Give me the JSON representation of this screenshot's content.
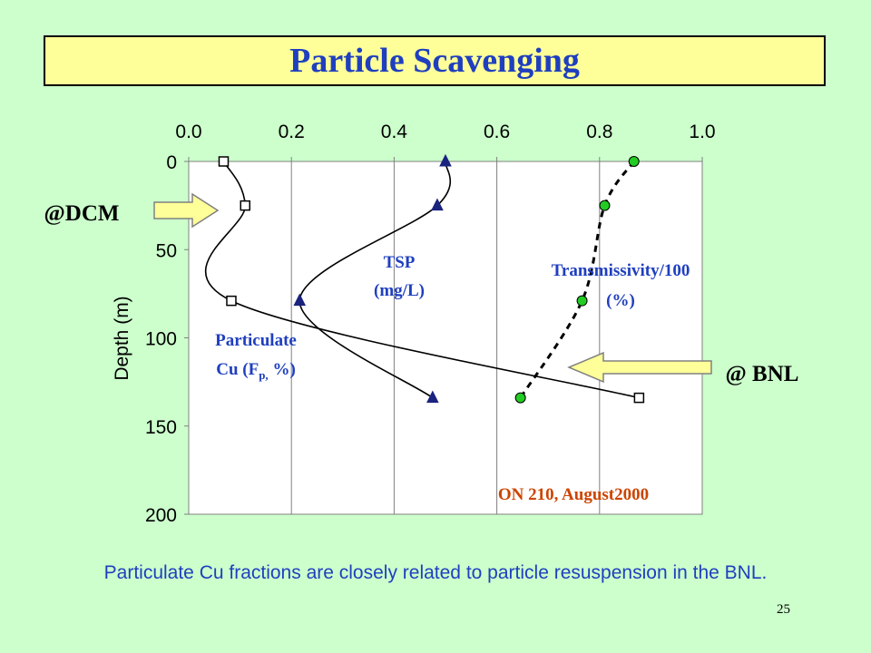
{
  "title": "Particle Scavenging",
  "caption": "Particulate Cu fractions are closely related to particle resuspension in the BNL.",
  "page_number": "25",
  "colors": {
    "background": "#ccffcc",
    "title_bg": "#ffff99",
    "title_text": "#1f3fbf",
    "label_blue": "#1f3fbf",
    "annotation_orange": "#cc4400",
    "tsp_marker": "#1a237e",
    "transmissivity_marker": "#22cc22",
    "arrow_fill": "#ffff99"
  },
  "labels": {
    "dcm": "@DCM",
    "bnl": "@ BNL",
    "tsp_line1": "TSP",
    "tsp_line2": "(mg/L)",
    "trans_line1": "Transmissivity/100",
    "trans_line2": "(%)",
    "cu_line1": "Particulate",
    "cu_line2_prefix": "Cu (F",
    "cu_line2_sub": "p,",
    "cu_line2_suffix": " %)",
    "station": "ON 210, August2000"
  },
  "chart_data": {
    "type": "line",
    "xlabel": "",
    "ylabel": "Depth (m)",
    "x_axis_position": "top",
    "y_inverted": true,
    "xlim": [
      0,
      1.0
    ],
    "ylim": [
      0,
      200
    ],
    "x_ticks": [
      "0.0",
      "0.2",
      "0.4",
      "0.6",
      "0.8",
      "1.0"
    ],
    "y_ticks": [
      "0",
      "50",
      "100",
      "150",
      "200"
    ],
    "series": [
      {
        "name": "Particulate Cu (Fp, %)",
        "marker": "open-square",
        "style": "solid",
        "depth": [
          0,
          25,
          79,
          134
        ],
        "x": [
          0.068,
          0.11,
          0.083,
          0.877
        ]
      },
      {
        "name": "TSP (mg/L)",
        "marker": "filled-triangle",
        "style": "solid",
        "depth": [
          0,
          25,
          79,
          134
        ],
        "x": [
          0.5,
          0.484,
          0.216,
          0.475
        ]
      },
      {
        "name": "Transmissivity/100 (%)",
        "marker": "filled-circle",
        "style": "dashed",
        "depth": [
          0,
          25,
          79,
          134
        ],
        "x": [
          0.867,
          0.81,
          0.766,
          0.646
        ]
      }
    ]
  }
}
